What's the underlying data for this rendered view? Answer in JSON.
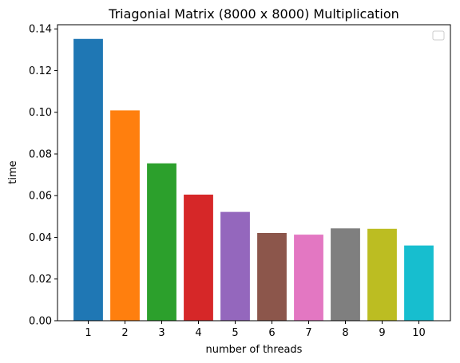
{
  "chart_data": {
    "type": "bar",
    "title": "Triagonial Matrix (8000 x 8000) Multiplication",
    "xlabel": "number of threads",
    "ylabel": "time",
    "categories": [
      "1",
      "2",
      "3",
      "4",
      "5",
      "6",
      "7",
      "8",
      "9",
      "10"
    ],
    "values": [
      0.1352,
      0.1009,
      0.0755,
      0.0605,
      0.0522,
      0.0421,
      0.0413,
      0.0443,
      0.0441,
      0.0361
    ],
    "colors": [
      "#1f77b4",
      "#ff7f0e",
      "#2ca02c",
      "#d62728",
      "#9467bd",
      "#8c564b",
      "#e377c2",
      "#7f7f7f",
      "#bcbd22",
      "#17becf"
    ],
    "ylim": [
      0,
      0.142
    ],
    "yticks": [
      "0.00",
      "0.02",
      "0.04",
      "0.06",
      "0.08",
      "0.10",
      "0.12",
      "0.14"
    ],
    "grid": false,
    "legend": {
      "placement": "top-right",
      "entries": []
    }
  }
}
